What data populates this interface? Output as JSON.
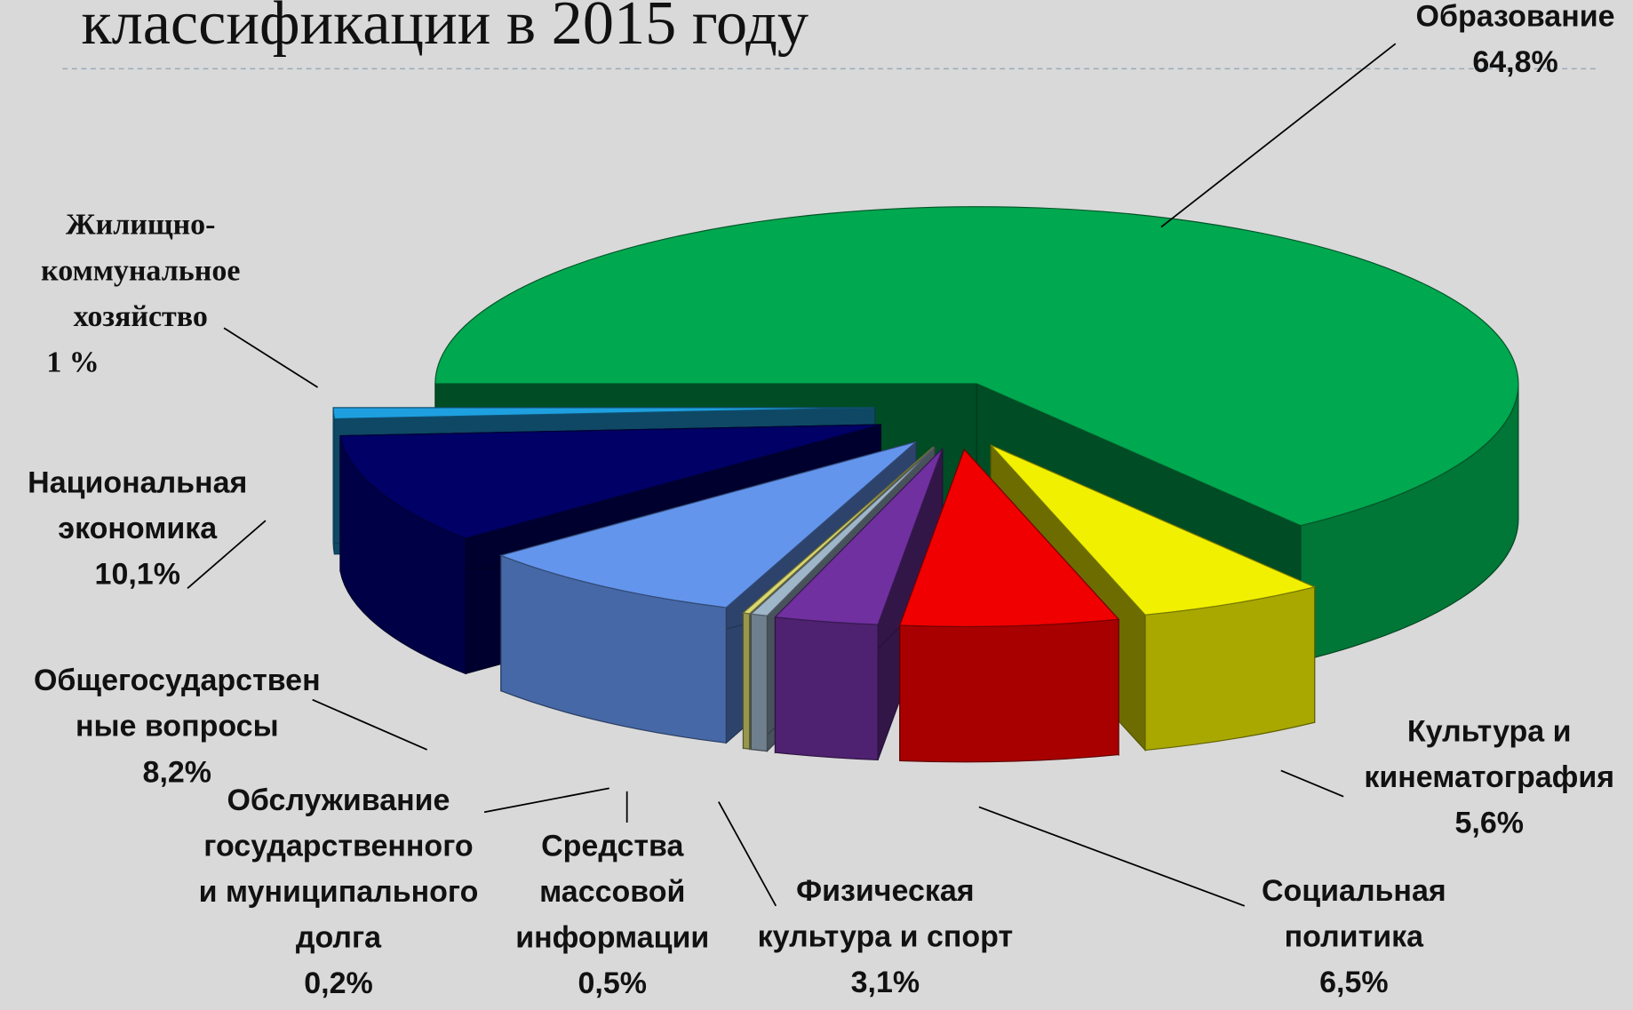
{
  "chart_data": {
    "type": "pie3d",
    "title": "классификации в 2015 году",
    "categories": [
      "Образование",
      "Культура и\nкинематография",
      "Социальная\nполитика",
      "Физическая\nкультура и спорт",
      "Средства\nмассовой\nинформации",
      "Обслуживание\nгосударственного\nи муниципального\nдолга",
      "Общегосударствен\nные вопросы",
      "Национальная\nэкономика",
      "Жилищно-\nкоммунальное\nхозяйство"
    ],
    "values": [
      64.8,
      5.6,
      6.5,
      3.1,
      0.5,
      0.2,
      8.2,
      10.1,
      1
    ],
    "value_labels": [
      "64,8%",
      "5,6%",
      "6,5%",
      "3,1%",
      "0,5%",
      "0,2%",
      "8,2%",
      "10,1%",
      "1 %"
    ],
    "colors": [
      "#00a84f",
      "#f0f000",
      "#f00000",
      "#7030a0",
      "#9fb6c9",
      "#d8d870",
      "#6495ed",
      "#000066",
      "#1ea0e0"
    ]
  }
}
